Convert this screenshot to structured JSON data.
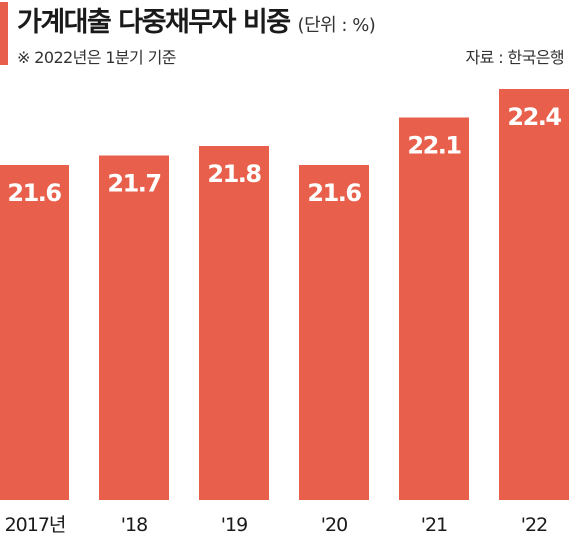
{
  "header": {
    "title": "가계대출 다중채무자 비중",
    "unit": "(단위 : %)",
    "note": "※ 2022년은 1분기 기준",
    "source": "자료 : 한국은행"
  },
  "colors": {
    "accent": "#E8604C",
    "bar": "#E8604C",
    "bar_label": "#FFFFFF",
    "text": "#1A1A1A"
  },
  "chart_data": {
    "type": "bar",
    "title": "가계대출 다중채무자 비중",
    "unit": "%",
    "categories": [
      "2017년",
      "'18",
      "'19",
      "'20",
      "'21",
      "'22"
    ],
    "values": [
      21.6,
      21.7,
      21.8,
      21.6,
      22.1,
      22.4
    ],
    "value_labels": [
      "21.6",
      "21.7",
      "21.8",
      "21.6",
      "22.1",
      "22.4"
    ],
    "xlabel": "",
    "ylabel": "",
    "grid": false,
    "legend": "none",
    "axis_visible": false
  }
}
